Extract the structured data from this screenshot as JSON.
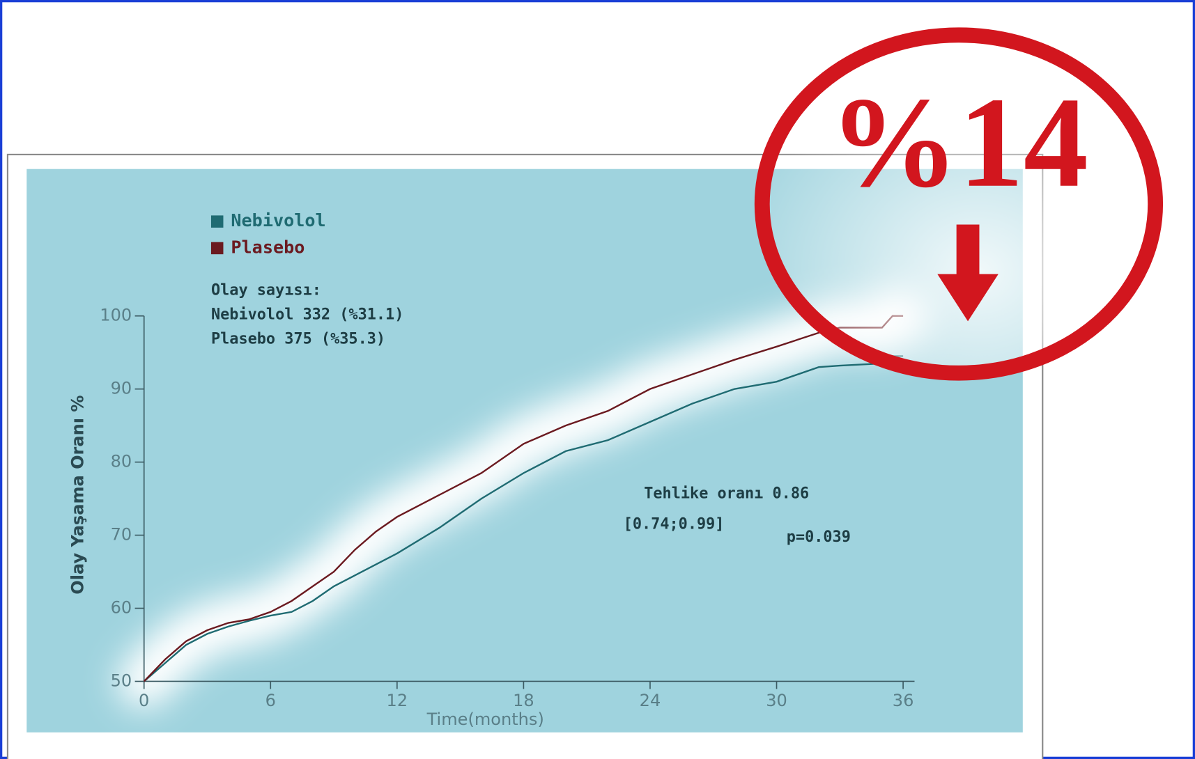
{
  "chart_data": {
    "type": "line",
    "y_label": "Olay Yaşama Oranı %",
    "x_label": "Time(months)",
    "x": [
      0,
      1,
      2,
      3,
      4,
      5,
      6,
      7,
      8,
      9,
      10,
      11,
      12,
      14,
      16,
      18,
      20,
      22,
      24,
      26,
      28,
      30,
      32,
      33,
      35,
      35.5,
      36
    ],
    "series": [
      {
        "name": "Nebivolol",
        "color": "#1f6b72",
        "values": [
          50,
          52.5,
          55,
          56.5,
          57.5,
          58.3,
          59,
          59.5,
          61,
          63,
          64.5,
          66,
          67.5,
          71,
          75,
          78.5,
          81.5,
          83,
          85.5,
          88,
          90,
          91,
          93,
          93.2,
          93.5,
          94.5,
          94.5
        ]
      },
      {
        "name": "Plasebo",
        "color": "#6b1a20",
        "values": [
          50,
          53,
          55.5,
          57,
          58,
          58.5,
          59.5,
          61,
          63,
          65,
          68,
          70.5,
          72.5,
          75.5,
          78.5,
          82.5,
          85,
          87,
          90,
          92,
          94,
          95.8,
          97.7,
          98.4,
          98.4,
          100,
          100
        ]
      }
    ],
    "xlim": [
      0,
      36
    ],
    "xticks": [
      0,
      6,
      12,
      18,
      24,
      30,
      36
    ],
    "ylim": [
      50,
      100
    ],
    "yticks": [
      50,
      60,
      70,
      80,
      90,
      100
    ],
    "annotations": {
      "events_title": "Olay sayısı:",
      "events": [
        "Nebivolol 332 (%31.1)",
        "Plasebo 375 (%35.3)"
      ],
      "hazard": "Tehlike oranı 0.86",
      "ci": "[0.74;0.99]",
      "p": "p=0.039"
    },
    "badge": "%14"
  }
}
